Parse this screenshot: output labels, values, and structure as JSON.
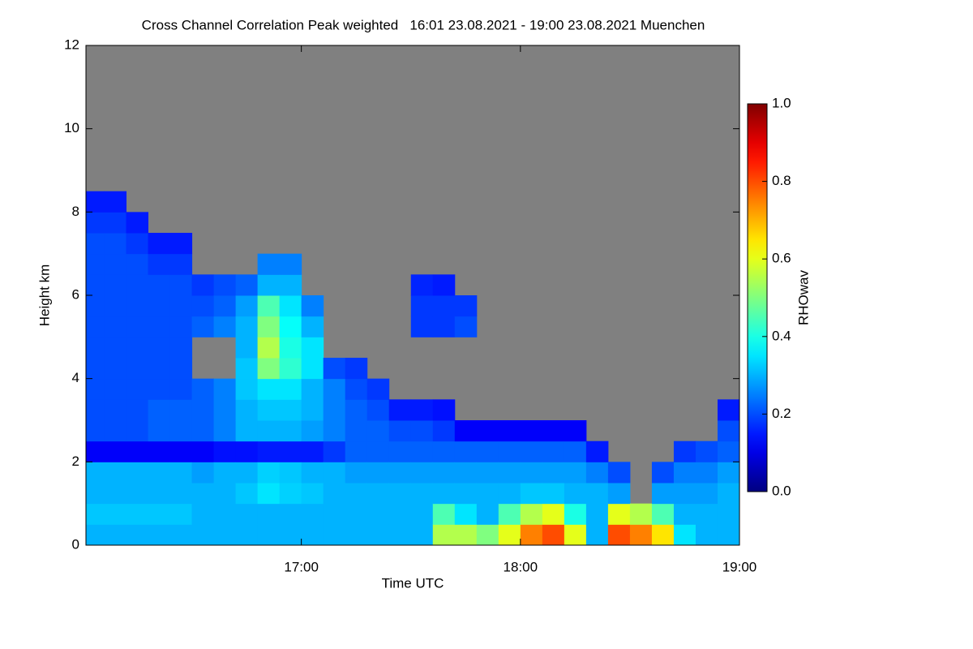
{
  "chart_data": {
    "type": "heatmap",
    "title": "Cross Channel Correlation Peak weighted   16:01 23.08.2021 - 19:00 23.08.2021 Muenchen",
    "x_label": "Time UTC",
    "y_label": "Height km",
    "colorbar_label": "RHOwav",
    "xlim": [
      16.0167,
      19.0
    ],
    "xticks": [
      {
        "value": 17,
        "label": "17:00"
      },
      {
        "value": 18,
        "label": "18:00"
      },
      {
        "value": 19,
        "label": "19:00"
      }
    ],
    "ylim": [
      0,
      12
    ],
    "yticks": [
      0,
      2,
      4,
      6,
      8,
      10,
      12
    ],
    "clim": [
      0,
      1
    ],
    "cticks": [
      {
        "value": 0,
        "label": "0.0"
      },
      0.2,
      0.4,
      0.6,
      0.8,
      {
        "value": 1,
        "label": "1.0"
      }
    ],
    "colormap": "jet",
    "missing_color": "#808080",
    "x": [
      16.05,
      16.15,
      16.25,
      16.35,
      16.45,
      16.55,
      16.65,
      16.75,
      16.85,
      16.95,
      17.05,
      17.15,
      17.25,
      17.35,
      17.45,
      17.55,
      17.65,
      17.75,
      17.85,
      17.95,
      18.05,
      18.15,
      18.25,
      18.35,
      18.45,
      18.55,
      18.65,
      18.75,
      18.85,
      18.95
    ],
    "y": [
      0.25,
      0.75,
      1.25,
      1.75,
      2.25,
      2.75,
      3.25,
      3.75,
      4.25,
      4.75,
      5.25,
      5.75,
      6.25,
      6.75,
      7.25,
      7.75,
      8.25,
      8.75,
      9.25,
      9.75,
      10.25,
      10.75,
      11.25,
      11.75
    ],
    "z": [
      [
        0.3,
        0.32,
        0.3,
        0.3,
        0.12,
        0.2,
        0.2,
        0.2,
        0.2,
        0.2,
        0.2,
        0.2,
        0.2,
        0.2,
        0.2,
        0.18,
        0.15,
        null,
        null,
        null,
        null,
        null,
        null,
        null
      ],
      [
        0.3,
        0.32,
        0.3,
        0.3,
        0.12,
        0.2,
        0.2,
        0.2,
        0.2,
        0.2,
        0.2,
        0.2,
        0.2,
        0.2,
        0.2,
        0.18,
        0.15,
        null,
        null,
        null,
        null,
        null,
        null,
        null
      ],
      [
        0.3,
        0.32,
        0.3,
        0.3,
        0.12,
        0.2,
        0.2,
        0.2,
        0.2,
        0.2,
        0.2,
        0.2,
        0.2,
        0.2,
        0.18,
        0.15,
        null,
        null,
        null,
        null,
        null,
        null,
        null,
        null
      ],
      [
        0.3,
        0.32,
        0.3,
        0.3,
        0.12,
        0.22,
        0.22,
        0.2,
        0.2,
        0.2,
        0.2,
        0.2,
        0.2,
        0.18,
        0.15,
        null,
        null,
        null,
        null,
        null,
        null,
        null,
        null,
        null
      ],
      [
        0.3,
        0.32,
        0.3,
        0.3,
        0.12,
        0.22,
        0.22,
        0.2,
        0.2,
        0.2,
        0.2,
        0.2,
        0.2,
        0.18,
        0.15,
        null,
        null,
        null,
        null,
        null,
        null,
        null,
        null,
        null
      ],
      [
        0.3,
        0.3,
        0.3,
        0.28,
        0.12,
        0.22,
        0.22,
        0.22,
        null,
        null,
        0.22,
        0.2,
        0.18,
        null,
        null,
        null,
        null,
        null,
        null,
        null,
        null,
        null,
        null,
        null
      ],
      [
        0.3,
        0.3,
        0.3,
        0.3,
        0.14,
        0.25,
        0.25,
        0.25,
        null,
        null,
        0.25,
        0.22,
        0.2,
        null,
        null,
        null,
        null,
        null,
        null,
        null,
        null,
        null,
        null,
        null
      ],
      [
        0.3,
        0.3,
        0.32,
        0.3,
        0.14,
        0.3,
        0.3,
        0.32,
        0.32,
        0.3,
        0.3,
        0.28,
        0.22,
        null,
        null,
        null,
        null,
        null,
        null,
        null,
        null,
        null,
        null,
        null
      ],
      [
        0.3,
        0.3,
        0.35,
        0.33,
        0.15,
        0.3,
        0.32,
        0.35,
        0.5,
        0.55,
        0.5,
        0.45,
        0.3,
        0.25,
        null,
        null,
        null,
        null,
        null,
        null,
        null,
        null,
        null,
        null
      ],
      [
        0.3,
        0.3,
        0.33,
        0.32,
        0.15,
        0.3,
        0.32,
        0.35,
        0.42,
        0.4,
        0.38,
        0.35,
        0.3,
        0.25,
        null,
        null,
        null,
        null,
        null,
        null,
        null,
        null,
        null,
        null
      ],
      [
        0.3,
        0.3,
        0.32,
        0.3,
        0.15,
        0.28,
        0.3,
        0.3,
        0.35,
        0.35,
        0.3,
        0.25,
        null,
        null,
        null,
        null,
        null,
        null,
        null,
        null,
        null,
        null,
        null,
        null
      ],
      [
        0.3,
        0.3,
        0.3,
        0.3,
        0.18,
        0.25,
        0.25,
        0.25,
        0.2,
        null,
        null,
        null,
        null,
        null,
        null,
        null,
        null,
        null,
        null,
        null,
        null,
        null,
        null,
        null
      ],
      [
        0.3,
        0.3,
        0.3,
        0.28,
        0.22,
        0.22,
        0.22,
        0.2,
        0.18,
        null,
        null,
        null,
        null,
        null,
        null,
        null,
        null,
        null,
        null,
        null,
        null,
        null,
        null,
        null
      ],
      [
        0.3,
        0.3,
        0.3,
        0.28,
        0.22,
        0.22,
        0.2,
        0.18,
        null,
        null,
        null,
        null,
        null,
        null,
        null,
        null,
        null,
        null,
        null,
        null,
        null,
        null,
        null,
        null
      ],
      [
        0.3,
        0.3,
        0.3,
        0.28,
        0.22,
        0.2,
        0.15,
        null,
        null,
        null,
        null,
        null,
        null,
        null,
        null,
        null,
        null,
        null,
        null,
        null,
        null,
        null,
        null,
        null
      ],
      [
        0.3,
        0.3,
        0.3,
        0.28,
        0.22,
        0.2,
        0.15,
        null,
        null,
        null,
        0.18,
        0.18,
        0.16,
        null,
        null,
        null,
        null,
        null,
        null,
        null,
        null,
        null,
        null,
        null
      ],
      [
        0.55,
        0.45,
        0.3,
        0.28,
        0.22,
        0.18,
        0.14,
        null,
        null,
        null,
        0.18,
        0.18,
        0.15,
        null,
        null,
        null,
        null,
        null,
        null,
        null,
        null,
        null,
        null,
        null
      ],
      [
        0.55,
        0.35,
        0.3,
        0.28,
        0.22,
        0.12,
        null,
        null,
        null,
        null,
        0.2,
        0.18,
        null,
        null,
        null,
        null,
        null,
        null,
        null,
        null,
        null,
        null,
        null,
        null
      ],
      [
        0.5,
        0.3,
        0.3,
        0.28,
        0.22,
        0.12,
        null,
        null,
        null,
        null,
        null,
        null,
        null,
        null,
        null,
        null,
        null,
        null,
        null,
        null,
        null,
        null,
        null,
        null
      ],
      [
        0.6,
        0.45,
        0.3,
        0.28,
        0.22,
        0.12,
        null,
        null,
        null,
        null,
        null,
        null,
        null,
        null,
        null,
        null,
        null,
        null,
        null,
        null,
        null,
        null,
        null,
        null
      ],
      [
        0.75,
        0.55,
        0.32,
        0.28,
        0.22,
        0.12,
        null,
        null,
        null,
        null,
        null,
        null,
        null,
        null,
        null,
        null,
        null,
        null,
        null,
        null,
        null,
        null,
        null,
        null
      ],
      [
        0.8,
        0.6,
        0.32,
        0.28,
        0.22,
        0.12,
        null,
        null,
        null,
        null,
        null,
        null,
        null,
        null,
        null,
        null,
        null,
        null,
        null,
        null,
        null,
        null,
        null,
        null
      ],
      [
        0.6,
        0.4,
        0.3,
        0.28,
        0.22,
        0.12,
        null,
        null,
        null,
        null,
        null,
        null,
        null,
        null,
        null,
        null,
        null,
        null,
        null,
        null,
        null,
        null,
        null,
        null
      ],
      [
        0.3,
        0.3,
        0.3,
        0.25,
        0.15,
        null,
        null,
        null,
        null,
        null,
        null,
        null,
        null,
        null,
        null,
        null,
        null,
        null,
        null,
        null,
        null,
        null,
        null,
        null
      ],
      [
        0.8,
        0.6,
        0.28,
        0.2,
        null,
        null,
        null,
        null,
        null,
        null,
        null,
        null,
        null,
        null,
        null,
        null,
        null,
        null,
        null,
        null,
        null,
        null,
        null,
        null
      ],
      [
        0.75,
        0.55,
        null,
        null,
        null,
        null,
        null,
        null,
        null,
        null,
        null,
        null,
        null,
        null,
        null,
        null,
        null,
        null,
        null,
        null,
        null,
        null,
        null,
        null
      ],
      [
        0.65,
        0.45,
        0.28,
        0.2,
        null,
        null,
        null,
        null,
        null,
        null,
        null,
        null,
        null,
        null,
        null,
        null,
        null,
        null,
        null,
        null,
        null,
        null,
        null,
        null
      ],
      [
        0.35,
        0.3,
        0.28,
        0.25,
        0.18,
        null,
        null,
        null,
        null,
        null,
        null,
        null,
        null,
        null,
        null,
        null,
        null,
        null,
        null,
        null,
        null,
        null,
        null,
        null
      ],
      [
        0.3,
        0.3,
        0.28,
        0.25,
        0.2,
        null,
        null,
        null,
        null,
        null,
        null,
        null,
        null,
        null,
        null,
        null,
        null,
        null,
        null,
        null,
        null,
        null,
        null,
        null
      ],
      [
        0.3,
        0.3,
        0.3,
        0.28,
        0.22,
        0.2,
        0.15,
        null,
        null,
        null,
        null,
        null,
        null,
        null,
        null,
        null,
        null,
        null,
        null,
        null,
        null,
        null,
        null,
        null
      ]
    ]
  }
}
